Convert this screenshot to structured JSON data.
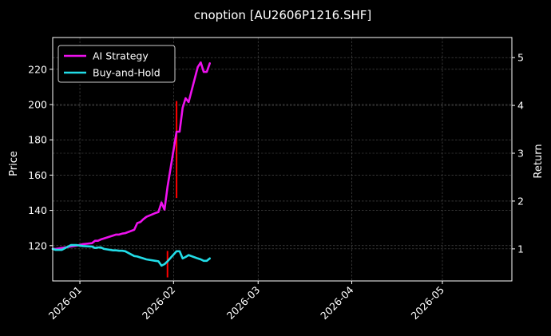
{
  "chart_data": {
    "type": "line",
    "title": "cnoption [AU2606P1216.SHF]",
    "left_axis": {
      "label": "Price",
      "ylim": [
        100,
        238
      ],
      "ticks": [
        120,
        140,
        160,
        180,
        200,
        220
      ]
    },
    "right_axis": {
      "label": "Return",
      "ylim": [
        0.33,
        5.42
      ],
      "ticks": [
        1,
        2,
        3,
        4,
        5
      ]
    },
    "x_axis": {
      "xlim": [
        "2025-12-23",
        "2026-05-24"
      ],
      "ticks": [
        "2026-01-01",
        "2026-02-01",
        "2026-03-01",
        "2026-04-01",
        "2026-05-01"
      ],
      "tick_labels": [
        "2026-01",
        "2026-02",
        "2026-03",
        "2026-04",
        "2026-05"
      ]
    },
    "grid": true,
    "legend_position": "top-left",
    "colors": {
      "background": "#000000",
      "ai": "#ee11ee",
      "bh": "#22dde8",
      "candle": "#ff0000",
      "grid": "#555555"
    },
    "series": [
      {
        "name": "AI Strategy",
        "color": "#ee11ee",
        "axis": "right",
        "x": [
          "2025-12-23",
          "2025-12-24",
          "2025-12-25",
          "2025-12-26",
          "2025-12-29",
          "2025-12-30",
          "2025-12-31",
          "2026-01-02",
          "2026-01-05",
          "2026-01-06",
          "2026-01-07",
          "2026-01-08",
          "2026-01-09",
          "2026-01-12",
          "2026-01-13",
          "2026-01-14",
          "2026-01-15",
          "2026-01-16",
          "2026-01-19",
          "2026-01-20",
          "2026-01-21",
          "2026-01-22",
          "2026-01-23",
          "2026-01-26",
          "2026-01-27",
          "2026-01-28",
          "2026-01-29",
          "2026-01-30",
          "2026-02-02",
          "2026-02-03",
          "2026-02-04",
          "2026-02-05",
          "2026-02-06",
          "2026-02-09",
          "2026-02-10",
          "2026-02-11",
          "2026-02-12",
          "2026-02-13"
        ],
        "values": [
          1.0,
          1.0,
          1.01,
          1.02,
          1.05,
          1.06,
          1.07,
          1.1,
          1.12,
          1.17,
          1.17,
          1.2,
          1.22,
          1.28,
          1.3,
          1.3,
          1.32,
          1.33,
          1.4,
          1.54,
          1.56,
          1.62,
          1.67,
          1.75,
          1.77,
          1.97,
          1.82,
          2.3,
          3.45,
          3.45,
          3.95,
          4.15,
          4.07,
          4.8,
          4.9,
          4.7,
          4.7,
          4.88
        ]
      },
      {
        "name": "Buy-and-Hold",
        "color": "#22dde8",
        "axis": "right",
        "x": [
          "2025-12-23",
          "2025-12-24",
          "2025-12-25",
          "2025-12-26",
          "2025-12-29",
          "2025-12-30",
          "2025-12-31",
          "2026-01-02",
          "2026-01-05",
          "2026-01-06",
          "2026-01-07",
          "2026-01-08",
          "2026-01-09",
          "2026-01-12",
          "2026-01-13",
          "2026-01-14",
          "2026-01-15",
          "2026-01-16",
          "2026-01-19",
          "2026-01-20",
          "2026-01-21",
          "2026-01-22",
          "2026-01-23",
          "2026-01-26",
          "2026-01-27",
          "2026-01-28",
          "2026-01-29",
          "2026-01-30",
          "2026-02-02",
          "2026-02-03",
          "2026-02-04",
          "2026-02-05",
          "2026-02-06",
          "2026-02-09",
          "2026-02-10",
          "2026-02-11",
          "2026-02-12",
          "2026-02-13"
        ],
        "values": [
          1.0,
          0.98,
          0.98,
          0.98,
          1.08,
          1.08,
          1.08,
          1.06,
          1.05,
          1.02,
          1.03,
          1.03,
          1.0,
          0.97,
          0.97,
          0.96,
          0.96,
          0.95,
          0.85,
          0.84,
          0.82,
          0.8,
          0.78,
          0.75,
          0.74,
          0.65,
          0.68,
          0.74,
          0.95,
          0.95,
          0.8,
          0.83,
          0.87,
          0.8,
          0.78,
          0.75,
          0.75,
          0.8
        ]
      }
    ],
    "candles": [
      {
        "x": "2026-01-30",
        "low": 102,
        "high": 117
      },
      {
        "x": "2026-02-02",
        "low": 147,
        "high": 202
      }
    ]
  },
  "legend": [
    {
      "label": "AI Strategy",
      "color": "#ee11ee"
    },
    {
      "label": "Buy-and-Hold",
      "color": "#22dde8"
    }
  ]
}
